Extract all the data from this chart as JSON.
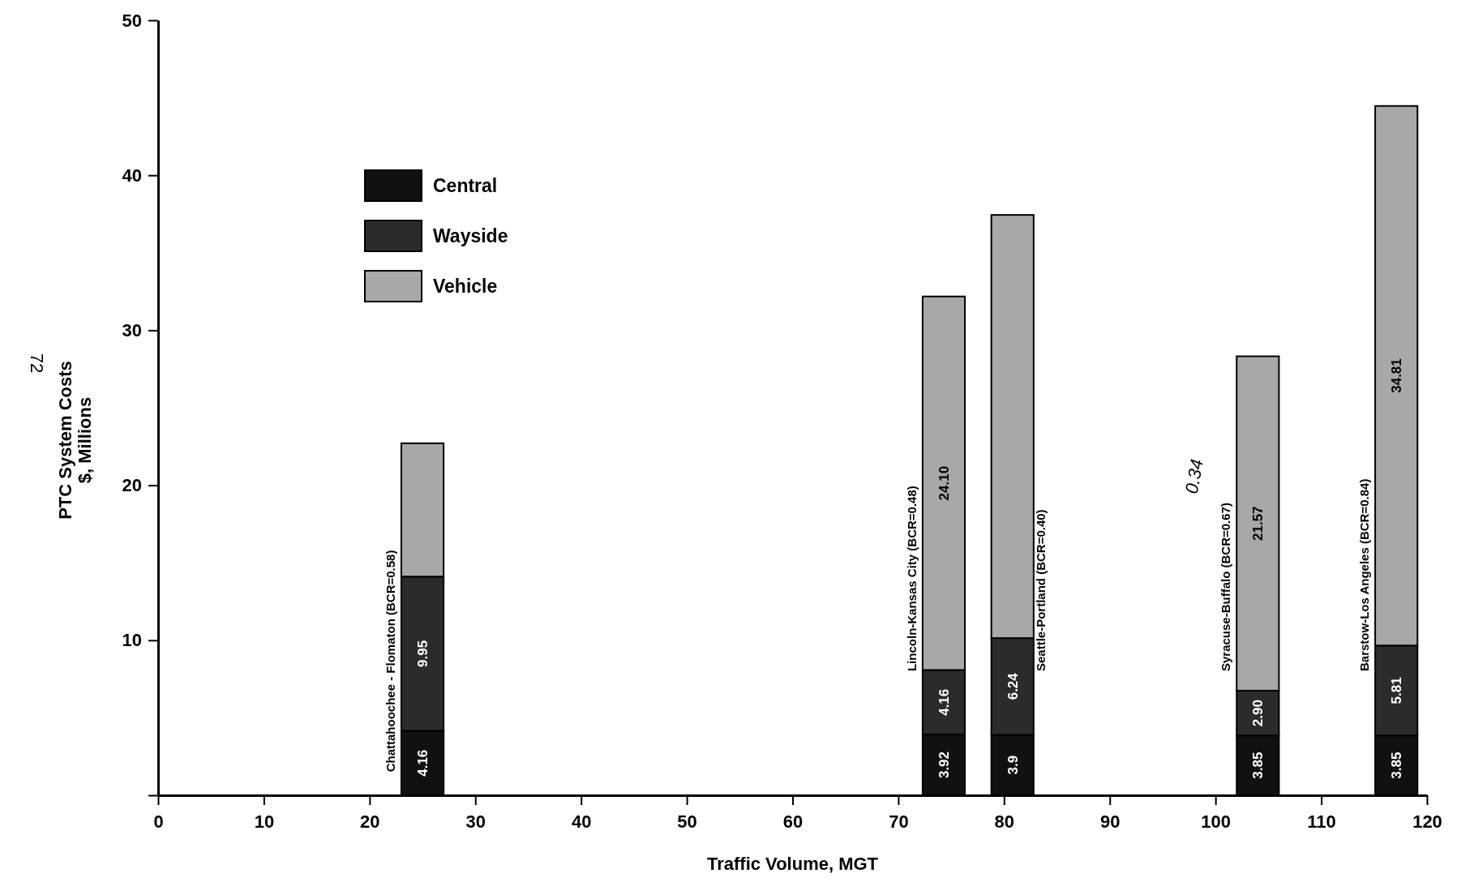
{
  "chart_data": {
    "type": "bar",
    "stacked": true,
    "xlabel": "Traffic Volume, MGT",
    "ylabel": "PTC System Costs\n$, Millions",
    "x": [
      25,
      74.3,
      80.8,
      104,
      117.1
    ],
    "xlim": [
      0,
      120
    ],
    "xticks": [
      0,
      10,
      20,
      30,
      40,
      50,
      60,
      70,
      80,
      90,
      100,
      110,
      120
    ],
    "ylim": [
      0,
      50
    ],
    "yticks": [
      {
        "value": 0,
        "label": null
      },
      10,
      20,
      30,
      40,
      50
    ],
    "legend": "top left",
    "grid": false,
    "series": [
      {
        "name": "Central",
        "color": "#111111",
        "values": [
          4.16,
          3.92,
          3.9,
          3.85,
          3.85
        ],
        "value_labels": [
          "4.16",
          "3.92",
          "3.9",
          "3.85",
          "3.85"
        ]
      },
      {
        "name": "Wayside",
        "color": "#2b2b2b",
        "values": [
          9.95,
          4.16,
          6.24,
          2.9,
          5.81
        ],
        "value_labels": [
          "9.95",
          "4.16",
          "6.24",
          "2.90",
          "5.81"
        ]
      },
      {
        "name": "Vehicle",
        "color": "#a8a8a8",
        "values": [
          8.6,
          24.1,
          27.3,
          21.57,
          34.81
        ],
        "value_labels": [
          null,
          "24.10",
          null,
          "21.57",
          "34.81"
        ]
      }
    ],
    "annotations": [
      "Chattahoochee - Flomaton (BCR=0.58)",
      "Lincoln-Kansas City (BCR=0.48)",
      "Seattle-Portland (BCR=0.40)",
      "Syracuse-Buffalo (BCR=0.67)",
      "Barstow-Los Angeles (BCR=0.84)",
      "0.34",
      "72"
    ]
  }
}
